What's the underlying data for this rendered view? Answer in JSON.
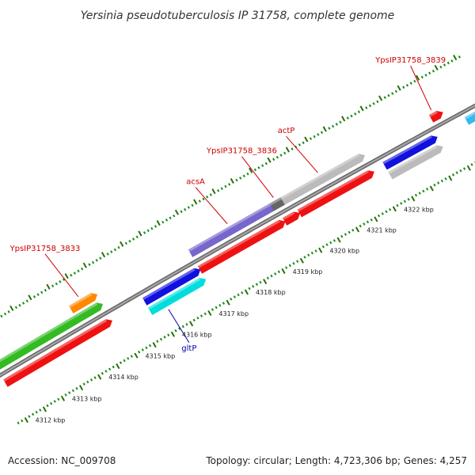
{
  "title": "Yersinia pseudotuberculosis IP 31758, complete genome",
  "footer": {
    "accession": "Accession: NC_009708",
    "topology": "Topology: circular; Length: 4,723,306 bp; Genes: 4,257"
  },
  "colors": {
    "backbone": "#888888",
    "tick_major": "#2a6e0a",
    "tick_minor": "#1a8a1a",
    "label_red": "#cc0000",
    "label_blue": "#0000aa"
  },
  "scale": {
    "unit": "kbp",
    "ticks": [
      {
        "value": 4312,
        "label": "4312 kbp"
      },
      {
        "value": 4313,
        "label": "4313 kbp"
      },
      {
        "value": 4314,
        "label": "4314 kbp"
      },
      {
        "value": 4315,
        "label": "4315 kbp"
      },
      {
        "value": 4316,
        "label": "4316 kbp"
      },
      {
        "value": 4317,
        "label": "4317 kbp"
      },
      {
        "value": 4318,
        "label": "4318 kbp"
      },
      {
        "value": 4319,
        "label": "4319 kbp"
      },
      {
        "value": 4320,
        "label": "4320 kbp"
      },
      {
        "value": 4321,
        "label": "4321 kbp"
      },
      {
        "value": 4322,
        "label": "4322 kbp"
      }
    ]
  },
  "features": [
    {
      "name": "cds-fwd-green",
      "start": 4311.5,
      "end": 4313.7,
      "color": "#33bb22",
      "track": 2,
      "label": ""
    },
    {
      "name": "cds-fwd-green-small",
      "start": 4313.7,
      "end": 4314.3,
      "color": "#33bb22",
      "track": 2,
      "label": ""
    },
    {
      "name": "cds-fwd-orange",
      "start": 4313.7,
      "end": 4314.3,
      "color": "#ff8800",
      "track": 3,
      "label": "YpsIP31758_3833"
    },
    {
      "name": "cds-fwd-red-1",
      "start": 4311.5,
      "end": 4313.7,
      "color": "#ee1111",
      "track": 1,
      "label": ""
    },
    {
      "name": "cds-fwd-red-2",
      "start": 4313.7,
      "end": 4314.3,
      "color": "#ee1111",
      "track": 1,
      "label": ""
    },
    {
      "name": "cds-fwd-blue-1",
      "start": 4315.3,
      "end": 4316.7,
      "color": "#1111dd",
      "track": 1,
      "label": ""
    },
    {
      "name": "cds-fwd-cyan",
      "start": 4315.3,
      "end": 4316.7,
      "color": "#00dddd",
      "track": 0,
      "label": "gltP"
    },
    {
      "name": "cds-fwd-purple",
      "start": 4316.8,
      "end": 4319.0,
      "color": "#7766cc",
      "track": 2,
      "label": "acsA"
    },
    {
      "name": "cds-fwd-red-3",
      "start": 4316.8,
      "end": 4319.0,
      "color": "#ee1111",
      "track": 1,
      "label": ""
    },
    {
      "name": "cds-fwd-darkgray",
      "start": 4319.0,
      "end": 4319.3,
      "color": "#666666",
      "track": 2,
      "label": "YpsIP31758_3836"
    },
    {
      "name": "cds-fwd-gray",
      "start": 4319.3,
      "end": 4321.4,
      "color": "#bbbbbb",
      "track": 2,
      "label": "actP"
    },
    {
      "name": "cds-fwd-red-4",
      "start": 4319.1,
      "end": 4319.4,
      "color": "#ee1111",
      "track": 1,
      "label": ""
    },
    {
      "name": "cds-fwd-red-5",
      "start": 4319.5,
      "end": 4321.4,
      "color": "#ee1111",
      "track": 1,
      "label": ""
    },
    {
      "name": "cds-fwd-blue-2",
      "start": 4321.8,
      "end": 4323.1,
      "color": "#1111dd",
      "track": 1,
      "label": ""
    },
    {
      "name": "cds-rev-gray",
      "start": 4321.8,
      "end": 4323.1,
      "color": "#bbbbbb",
      "track": 0,
      "label": ""
    },
    {
      "name": "cds-red-far",
      "start": 4323.3,
      "end": 4323.5,
      "color": "#ee1111",
      "track": 2,
      "label": "YpsIP31758_3839"
    },
    {
      "name": "cds-cyan-far",
      "start": 4324.0,
      "end": 4324.4,
      "color": "#33bbee",
      "track": 1,
      "label": ""
    }
  ]
}
